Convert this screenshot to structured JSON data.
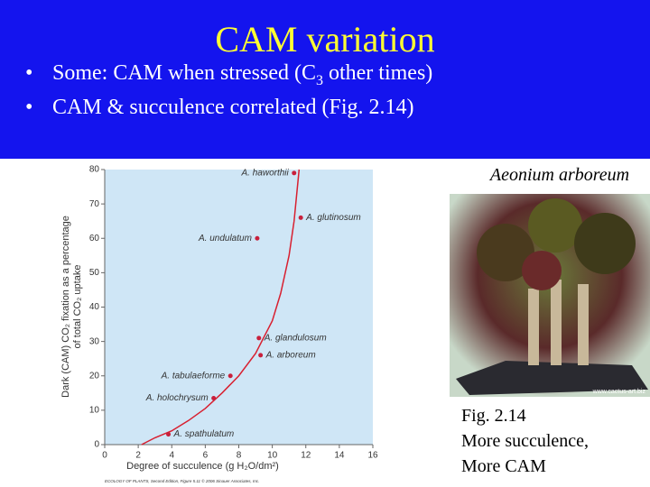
{
  "slide": {
    "title": "CAM variation",
    "bullets": [
      [
        "Some: CAM when stressed (C",
        "3",
        " other times)"
      ],
      [
        "CAM & succulence correlated (Fig. 2.14)"
      ]
    ]
  },
  "chart_data": {
    "type": "scatter",
    "xlabel": "Degree of succulence (g H₂O/dm²)",
    "ylabel": [
      "Dark (CAM) CO₂ fixation as a percentage",
      "of total CO₂ uptake"
    ],
    "labels": [
      "A. haworthii",
      "A. glutinosum",
      "A. undulatum",
      "A. glandulosum",
      "A. arboreum",
      "A. tabulaeforme",
      "A. holochrysum",
      "A. spathulatum"
    ],
    "x": [
      11.3,
      11.7,
      9.1,
      9.2,
      9.3,
      7.5,
      6.5,
      3.8
    ],
    "y": [
      79,
      66,
      60,
      31,
      26,
      20,
      13.5,
      3
    ],
    "color": "#c8203c",
    "fit_x": [
      2.2,
      3,
      4,
      5,
      6,
      7,
      8,
      9,
      10,
      10.5,
      11,
      11.3,
      11.6
    ],
    "fit_y": [
      0,
      2,
      4,
      7,
      10.5,
      15,
      20,
      26.5,
      36,
      44,
      55,
      65,
      80
    ],
    "xlim": [
      0,
      16
    ],
    "xticks": [
      0,
      2,
      4,
      6,
      8,
      10,
      12,
      14,
      16
    ],
    "ylim": [
      0,
      80
    ],
    "yticks": [
      0,
      10,
      20,
      30,
      40,
      50,
      60,
      70,
      80
    ],
    "credit": "ECOLOGY OF PLANTS, Second Edition, Figure 5.11 © 2006 Sinauer Associates, Inc."
  },
  "photo": {
    "caption": "Aeonium arboreum",
    "watermark": "www.cactus-art.biz"
  },
  "figure_caption": [
    "Fig. 2.14",
    "More succulence,",
    "More CAM"
  ]
}
